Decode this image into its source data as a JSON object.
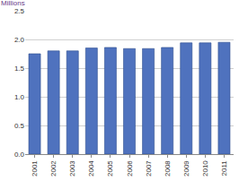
{
  "chart_data": {
    "type": "bar",
    "ylabel": "Millions",
    "categories": [
      "2001",
      "2002",
      "2003",
      "2004",
      "2005",
      "2006",
      "2007",
      "2008",
      "2009",
      "2010",
      "2011"
    ],
    "values": [
      1.75,
      1.8,
      1.8,
      1.85,
      1.86,
      1.84,
      1.84,
      1.86,
      1.94,
      1.94,
      1.95
    ],
    "color": "#4f72be",
    "ylim": [
      0,
      2.5
    ],
    "yticks": [
      {
        "value": 0,
        "label": "0.0"
      },
      0.5,
      {
        "value": 1,
        "label": "1.0"
      },
      1.5,
      {
        "value": 2,
        "label": "2.0"
      },
      2.5
    ],
    "grid": true
  }
}
